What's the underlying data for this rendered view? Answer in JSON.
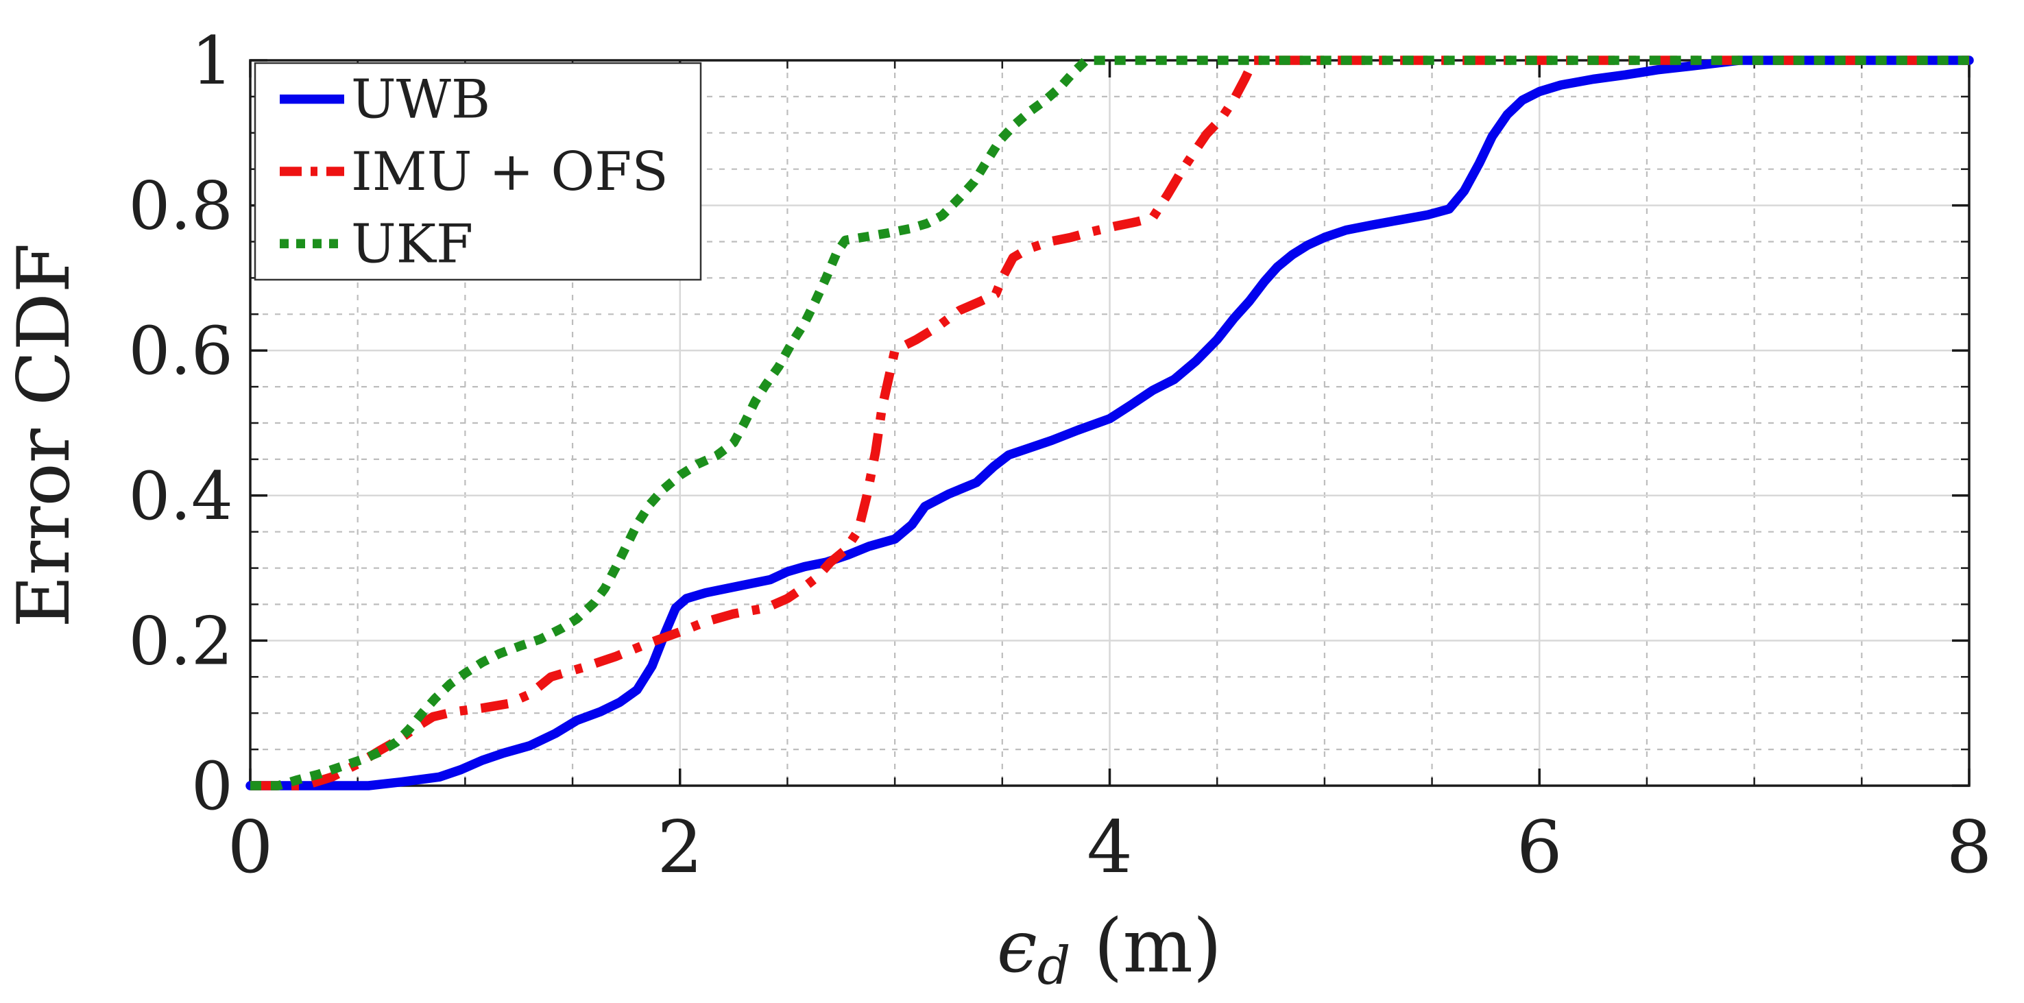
{
  "chart_data": {
    "type": "line",
    "title": "",
    "xlabel": {
      "symbol": "ϵ",
      "subscript": "d",
      "unit": "(m)"
    },
    "ylabel": "Error CDF",
    "xlim": [
      0,
      8
    ],
    "ylim": [
      0,
      1
    ],
    "xticks": [
      0,
      2,
      4,
      6,
      8
    ],
    "yticks": [
      0,
      0.2,
      0.4,
      0.6,
      0.8,
      1
    ],
    "xtick_labels": [
      "0",
      "2",
      "4",
      "6",
      "8"
    ],
    "ytick_labels": [
      "0",
      "0.2",
      "0.4",
      "0.6",
      "0.8",
      "1"
    ],
    "x_minor_step": 0.5,
    "y_minor_step": 0.05,
    "grid": {
      "major": true,
      "minor": true
    },
    "legend": {
      "position": "top-left",
      "entries": [
        {
          "id": "uwb",
          "label": "UWB",
          "color": "#0202EE",
          "style": "solid"
        },
        {
          "id": "imu-ofs",
          "label": "IMU + OFS",
          "color": "#EE1212",
          "style": "dashdot"
        },
        {
          "id": "ukf",
          "label": "UKF",
          "color": "#1C8F1C",
          "style": "dotted"
        }
      ]
    },
    "series": [
      {
        "name": "UWB",
        "color": "#0202EE",
        "style": "solid",
        "points": [
          [
            0,
            0
          ],
          [
            0.55,
            0
          ],
          [
            0.7,
            0.005
          ],
          [
            0.88,
            0.012
          ],
          [
            0.98,
            0.022
          ],
          [
            1.08,
            0.035
          ],
          [
            1.18,
            0.045
          ],
          [
            1.3,
            0.055
          ],
          [
            1.42,
            0.072
          ],
          [
            1.52,
            0.09
          ],
          [
            1.63,
            0.102
          ],
          [
            1.72,
            0.115
          ],
          [
            1.8,
            0.132
          ],
          [
            1.87,
            0.165
          ],
          [
            1.93,
            0.21
          ],
          [
            1.98,
            0.245
          ],
          [
            2.03,
            0.258
          ],
          [
            2.12,
            0.266
          ],
          [
            2.22,
            0.272
          ],
          [
            2.32,
            0.278
          ],
          [
            2.42,
            0.284
          ],
          [
            2.5,
            0.295
          ],
          [
            2.58,
            0.302
          ],
          [
            2.68,
            0.308
          ],
          [
            2.78,
            0.318
          ],
          [
            2.88,
            0.33
          ],
          [
            3.0,
            0.34
          ],
          [
            3.08,
            0.36
          ],
          [
            3.14,
            0.385
          ],
          [
            3.25,
            0.402
          ],
          [
            3.38,
            0.418
          ],
          [
            3.46,
            0.44
          ],
          [
            3.53,
            0.456
          ],
          [
            3.63,
            0.466
          ],
          [
            3.73,
            0.476
          ],
          [
            3.85,
            0.49
          ],
          [
            4.0,
            0.506
          ],
          [
            4.1,
            0.525
          ],
          [
            4.2,
            0.545
          ],
          [
            4.3,
            0.56
          ],
          [
            4.4,
            0.585
          ],
          [
            4.5,
            0.615
          ],
          [
            4.58,
            0.645
          ],
          [
            4.65,
            0.668
          ],
          [
            4.72,
            0.695
          ],
          [
            4.78,
            0.715
          ],
          [
            4.85,
            0.732
          ],
          [
            4.92,
            0.745
          ],
          [
            5.0,
            0.756
          ],
          [
            5.1,
            0.766
          ],
          [
            5.22,
            0.773
          ],
          [
            5.35,
            0.78
          ],
          [
            5.48,
            0.787
          ],
          [
            5.58,
            0.795
          ],
          [
            5.65,
            0.82
          ],
          [
            5.72,
            0.858
          ],
          [
            5.78,
            0.895
          ],
          [
            5.85,
            0.925
          ],
          [
            5.92,
            0.945
          ],
          [
            6.0,
            0.957
          ],
          [
            6.1,
            0.966
          ],
          [
            6.25,
            0.974
          ],
          [
            6.4,
            0.98
          ],
          [
            6.55,
            0.987
          ],
          [
            6.7,
            0.992
          ],
          [
            6.82,
            0.996
          ],
          [
            6.93,
            1
          ],
          [
            8,
            1
          ]
        ]
      },
      {
        "name": "IMU + OFS",
        "color": "#EE1212",
        "style": "dashdot",
        "points": [
          [
            0,
            0
          ],
          [
            0.25,
            0
          ],
          [
            0.38,
            0.012
          ],
          [
            0.5,
            0.03
          ],
          [
            0.6,
            0.048
          ],
          [
            0.7,
            0.065
          ],
          [
            0.78,
            0.082
          ],
          [
            0.85,
            0.095
          ],
          [
            0.95,
            0.102
          ],
          [
            1.08,
            0.107
          ],
          [
            1.2,
            0.113
          ],
          [
            1.3,
            0.126
          ],
          [
            1.4,
            0.15
          ],
          [
            1.55,
            0.163
          ],
          [
            1.7,
            0.178
          ],
          [
            1.85,
            0.196
          ],
          [
            2.0,
            0.212
          ],
          [
            2.12,
            0.226
          ],
          [
            2.25,
            0.237
          ],
          [
            2.4,
            0.245
          ],
          [
            2.5,
            0.258
          ],
          [
            2.57,
            0.272
          ],
          [
            2.64,
            0.288
          ],
          [
            2.7,
            0.308
          ],
          [
            2.77,
            0.325
          ],
          [
            2.83,
            0.352
          ],
          [
            2.87,
            0.4
          ],
          [
            2.91,
            0.46
          ],
          [
            2.94,
            0.52
          ],
          [
            2.97,
            0.56
          ],
          [
            3.0,
            0.6
          ],
          [
            3.1,
            0.615
          ],
          [
            3.2,
            0.633
          ],
          [
            3.3,
            0.655
          ],
          [
            3.4,
            0.668
          ],
          [
            3.47,
            0.678
          ],
          [
            3.5,
            0.7
          ],
          [
            3.55,
            0.728
          ],
          [
            3.62,
            0.74
          ],
          [
            3.72,
            0.75
          ],
          [
            3.82,
            0.756
          ],
          [
            3.92,
            0.764
          ],
          [
            4.02,
            0.771
          ],
          [
            4.12,
            0.777
          ],
          [
            4.2,
            0.783
          ],
          [
            4.27,
            0.815
          ],
          [
            4.33,
            0.845
          ],
          [
            4.39,
            0.872
          ],
          [
            4.45,
            0.898
          ],
          [
            4.52,
            0.92
          ],
          [
            4.58,
            0.947
          ],
          [
            4.63,
            0.975
          ],
          [
            4.67,
            1
          ],
          [
            8,
            1
          ]
        ]
      },
      {
        "name": "UKF",
        "color": "#1C8F1C",
        "style": "dotted",
        "points": [
          [
            0,
            0
          ],
          [
            0.13,
            0
          ],
          [
            0.22,
            0.008
          ],
          [
            0.32,
            0.016
          ],
          [
            0.42,
            0.026
          ],
          [
            0.52,
            0.036
          ],
          [
            0.6,
            0.046
          ],
          [
            0.68,
            0.06
          ],
          [
            0.74,
            0.078
          ],
          [
            0.8,
            0.1
          ],
          [
            0.86,
            0.12
          ],
          [
            0.93,
            0.14
          ],
          [
            1.0,
            0.155
          ],
          [
            1.08,
            0.17
          ],
          [
            1.16,
            0.182
          ],
          [
            1.25,
            0.192
          ],
          [
            1.35,
            0.202
          ],
          [
            1.45,
            0.217
          ],
          [
            1.52,
            0.23
          ],
          [
            1.6,
            0.252
          ],
          [
            1.65,
            0.272
          ],
          [
            1.7,
            0.3
          ],
          [
            1.75,
            0.33
          ],
          [
            1.8,
            0.36
          ],
          [
            1.86,
            0.388
          ],
          [
            1.92,
            0.408
          ],
          [
            2.0,
            0.428
          ],
          [
            2.08,
            0.443
          ],
          [
            2.17,
            0.455
          ],
          [
            2.25,
            0.473
          ],
          [
            2.3,
            0.5
          ],
          [
            2.35,
            0.53
          ],
          [
            2.4,
            0.553
          ],
          [
            2.46,
            0.578
          ],
          [
            2.52,
            0.61
          ],
          [
            2.58,
            0.638
          ],
          [
            2.63,
            0.668
          ],
          [
            2.68,
            0.7
          ],
          [
            2.73,
            0.735
          ],
          [
            2.77,
            0.752
          ],
          [
            2.87,
            0.757
          ],
          [
            2.97,
            0.762
          ],
          [
            3.07,
            0.768
          ],
          [
            3.15,
            0.775
          ],
          [
            3.22,
            0.786
          ],
          [
            3.3,
            0.81
          ],
          [
            3.37,
            0.833
          ],
          [
            3.43,
            0.862
          ],
          [
            3.49,
            0.89
          ],
          [
            3.56,
            0.912
          ],
          [
            3.63,
            0.93
          ],
          [
            3.7,
            0.945
          ],
          [
            3.77,
            0.963
          ],
          [
            3.83,
            0.983
          ],
          [
            3.89,
            1
          ],
          [
            8,
            1
          ]
        ]
      }
    ]
  },
  "styles": {
    "background": "#ffffff",
    "axis_color": "#1a1a1a",
    "text_color": "#202020",
    "grid_major_color": "#d8d8d8",
    "grid_minor_color": "#bdbdbd",
    "legend_border_color": "#333333"
  }
}
